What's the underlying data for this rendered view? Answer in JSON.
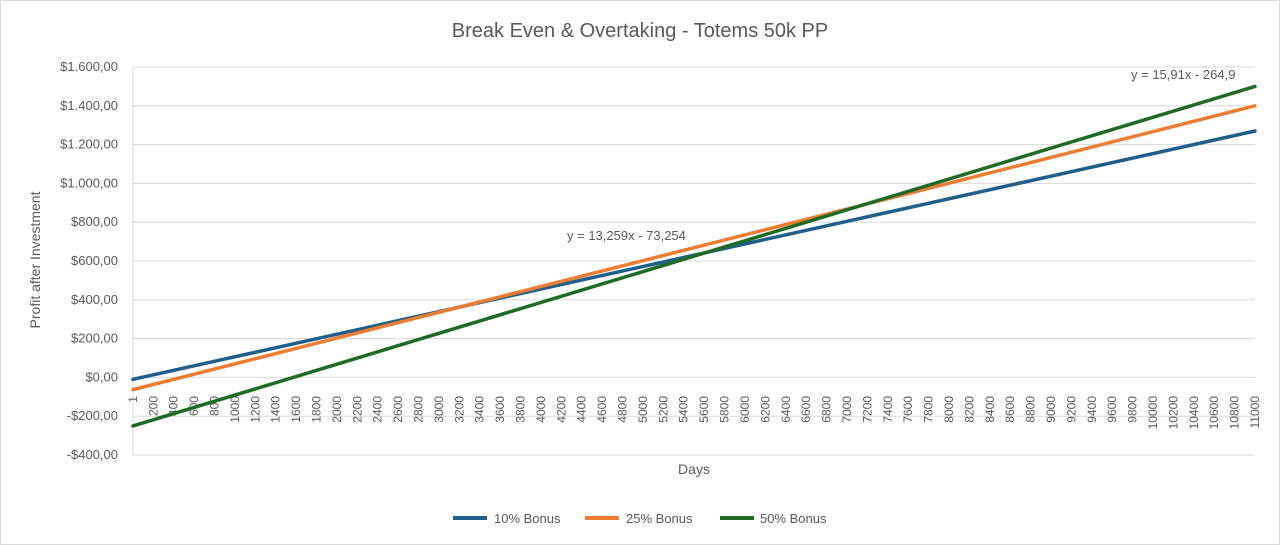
{
  "chart_data": {
    "type": "line",
    "title": "Break Even & Overtaking - Totems 50k PP",
    "xlabel": "Days",
    "ylabel": "Profit after Investment",
    "x_ticks": [
      "1",
      "200",
      "400",
      "600",
      "800",
      "1000",
      "1200",
      "1400",
      "1600",
      "1800",
      "2000",
      "2200",
      "2400",
      "2600",
      "2800",
      "3000",
      "3200",
      "3400",
      "3600",
      "3800",
      "4000",
      "4200",
      "4400",
      "4600",
      "4800",
      "5000",
      "5200",
      "5400",
      "5600",
      "5800",
      "6000",
      "6200",
      "6400",
      "6600",
      "6800",
      "7000",
      "7200",
      "7400",
      "7600",
      "7800",
      "8000",
      "8200",
      "8400",
      "8600",
      "8800",
      "9000",
      "9200",
      "9400",
      "9600",
      "9800",
      "10000",
      "10200",
      "10400",
      "10600",
      "10800",
      "11000"
    ],
    "y_ticks": [
      "$1.600,00",
      "$1.400,00",
      "$1.200,00",
      "$1.000,00",
      "$800,00",
      "$600,00",
      "$400,00",
      "$200,00",
      "$0,00",
      "-$200,00",
      "-$400,00"
    ],
    "ylim": [
      -400,
      1600
    ],
    "xlim": [
      1,
      11000
    ],
    "grid": true,
    "legend_position": "bottom",
    "series": [
      {
        "name": "10% Bonus",
        "color": "#1f5f8b",
        "x": [
          1,
          11000
        ],
        "y": [
          -10,
          1270
        ]
      },
      {
        "name": "25% Bonus",
        "color": "#ed7d31",
        "x": [
          1,
          11000
        ],
        "y": [
          -63,
          1400
        ]
      },
      {
        "name": "50% Bonus",
        "color": "#1e6b24",
        "x": [
          1,
          11000
        ],
        "y": [
          -250,
          1500
        ]
      }
    ],
    "annotations": [
      {
        "text": "y = 13,259x - 73,254"
      },
      {
        "text": "y = 15,91x - 264,9"
      }
    ]
  }
}
